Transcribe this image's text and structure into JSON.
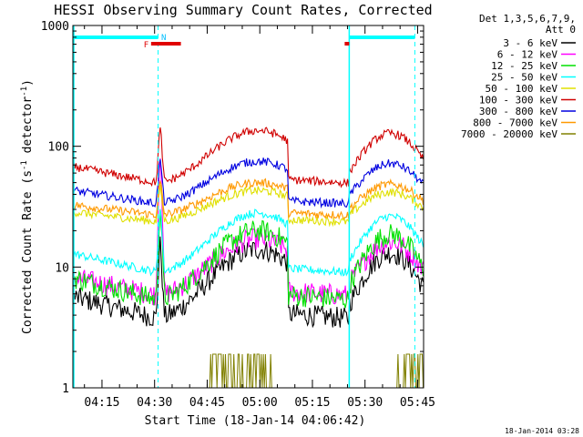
{
  "chart_data": {
    "type": "line",
    "title": "HESSI Observing Summary Count Rates, Corrected",
    "xlabel": "Start Time (18-Jan-14 04:06:42)",
    "ylabel": "Corrected Count Rate (s⁻¹ detector⁻¹)",
    "yscale": "log",
    "ylim": [
      1,
      1000
    ],
    "xlim_minutes": [
      0,
      100
    ],
    "x_ticks": [
      "04:15",
      "04:30",
      "04:45",
      "05:00",
      "05:15",
      "05:30",
      "05:45"
    ],
    "y_ticks": [
      "1",
      "10",
      "100",
      "1000"
    ],
    "detector_info": [
      "Det 1,3,5,6,7,9,",
      "Att 0"
    ],
    "timestamp": "18-Jan-2014 03:28",
    "flag_labels": {
      "fast": "F",
      "night": "N"
    },
    "series": [
      {
        "name": "3 - 6 keV",
        "color": "#000000"
      },
      {
        "name": "6 - 12 keV",
        "color": "#ff00ff"
      },
      {
        "name": "12 - 25 keV",
        "color": "#00e000"
      },
      {
        "name": "25 - 50 keV",
        "color": "#00ffff"
      },
      {
        "name": "50 - 100 keV",
        "color": "#e0e000"
      },
      {
        "name": "100 - 300 keV",
        "color": "#d00000"
      },
      {
        "name": "300 - 800 keV",
        "color": "#0000e0"
      },
      {
        "name": "800 - 7000 keV",
        "color": "#ff9900"
      },
      {
        "name": "7000 - 20000 keV",
        "color": "#808000"
      }
    ],
    "levels": {
      "3 - 6 keV": {
        "low": 3.5,
        "high": 14,
        "spike": 15
      },
      "6 - 12 keV": {
        "low": 5.5,
        "high": 17,
        "spike": 95
      },
      "12 - 25 keV": {
        "low": 5.0,
        "high": 20,
        "spike": 30
      },
      "25 - 50 keV": {
        "low": 8.5,
        "high": 28,
        "spike": 30
      },
      "50 - 100 keV": {
        "low": 23,
        "high": 43,
        "spike": 45
      },
      "100 - 300 keV": {
        "low": 47,
        "high": 135,
        "spike": 135
      },
      "300 - 800 keV": {
        "low": 32,
        "high": 75,
        "spike": 75
      },
      "800 - 7000 keV": {
        "low": 26,
        "high": 50,
        "spike": 50
      },
      "7000 - 20000 keV": {
        "low": 1,
        "high": 1.9,
        "spike": 1.9
      }
    },
    "night_intervals_minutes": [
      [
        0,
        24.3
      ],
      [
        78.8,
        100
      ]
    ],
    "fast_intervals_minutes": [
      [
        22,
        30
      ],
      [
        77,
        79
      ]
    ]
  }
}
